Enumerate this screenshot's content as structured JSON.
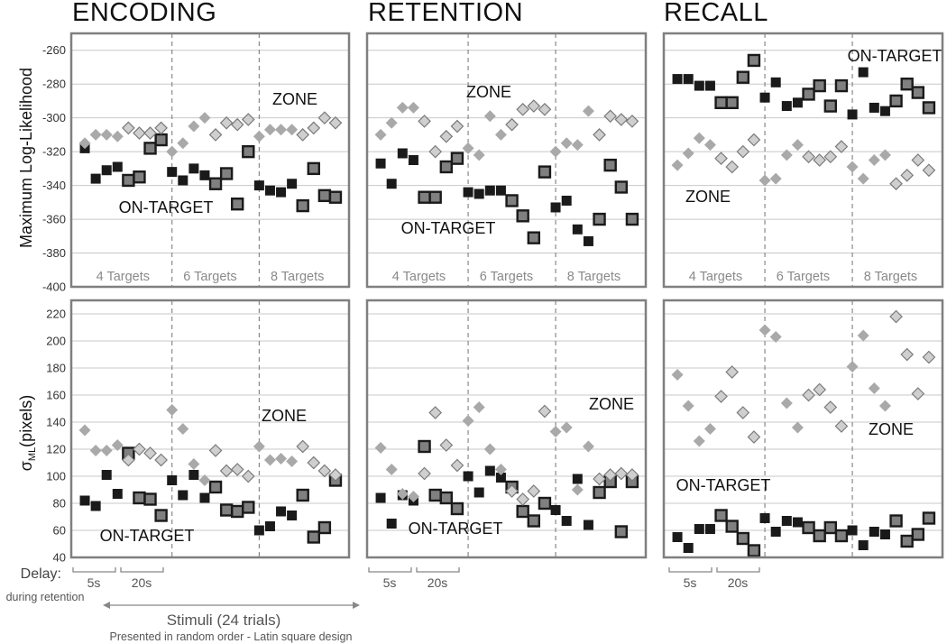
{
  "phases": [
    "ENCODING",
    "RETENTION",
    "RECALL"
  ],
  "colors": {
    "on_target": "#1a1a1a",
    "zone": "#a9a9a9",
    "frame": "#7f7f7f",
    "grid": "#c8c8c8",
    "divider": "#7f7f7f"
  },
  "footer": {
    "delay_title": "Delay:",
    "delay_sub": "during retention",
    "delay_5s": "5s",
    "delay_20s": "20s",
    "stimuli": "Stimuli (24 trials)",
    "stimuli_sub": "Presented in random order - Latin square design"
  },
  "chart_data": [
    {
      "type": "scatter",
      "title": "ENCODING",
      "ylabel": "Maximum Log-Likelihood",
      "ylim": [
        -400,
        -250
      ],
      "yticks": [
        -260,
        -280,
        -300,
        -320,
        -340,
        -360,
        -380,
        -400
      ],
      "grid": true,
      "group_labels": [
        "4 Targets",
        "6 Targets",
        "8 Targets"
      ],
      "annotations": [
        "ZONE",
        "ON-TARGET"
      ],
      "x": [
        1,
        2,
        3,
        4,
        5,
        6,
        7,
        8,
        9,
        10,
        11,
        12,
        13,
        14,
        15,
        16,
        17,
        18,
        19,
        20,
        21,
        22,
        23,
        24
      ],
      "series": [
        {
          "name": "ON-TARGET",
          "values": [
            -318,
            -336,
            -331,
            -329,
            -337,
            -335,
            -318,
            -313,
            -332,
            -337,
            -330,
            -334,
            -339,
            -333,
            -351,
            -320,
            -340,
            -343,
            -344,
            -339,
            -352,
            -330,
            -346,
            -347
          ],
          "boxed": [
            false,
            false,
            false,
            false,
            true,
            true,
            true,
            true,
            false,
            false,
            false,
            false,
            true,
            true,
            true,
            true,
            false,
            false,
            false,
            false,
            true,
            true,
            true,
            true
          ]
        },
        {
          "name": "ZONE",
          "values": [
            -315,
            -310,
            -310,
            -311,
            -306,
            -309,
            -309,
            -306,
            -320,
            -315,
            -305,
            -300,
            -310,
            -303,
            -304,
            -301,
            -311,
            -307,
            -307,
            -307,
            -310,
            -306,
            -300,
            -303
          ],
          "outlined": [
            false,
            false,
            false,
            false,
            true,
            true,
            true,
            true,
            false,
            false,
            false,
            false,
            true,
            true,
            true,
            true,
            false,
            false,
            false,
            false,
            true,
            true,
            true,
            true
          ]
        }
      ]
    },
    {
      "type": "scatter",
      "title": "RETENTION",
      "ylim": [
        -400,
        -250
      ],
      "grid": true,
      "group_labels": [
        "4 Targets",
        "6 Targets",
        "8 Targets"
      ],
      "annotations": [
        "ZONE",
        "ON-TARGET"
      ],
      "x": [
        1,
        2,
        3,
        4,
        5,
        6,
        7,
        8,
        9,
        10,
        11,
        12,
        13,
        14,
        15,
        16,
        17,
        18,
        19,
        20,
        21,
        22,
        23,
        24
      ],
      "series": [
        {
          "name": "ON-TARGET",
          "values": [
            -327,
            -339,
            -321,
            -325,
            -347,
            -347,
            -329,
            -324,
            -344,
            -345,
            -343,
            -343,
            -349,
            -358,
            -371,
            -332,
            -353,
            -349,
            -366,
            -373,
            -360,
            -328,
            -341,
            -360
          ],
          "boxed": [
            false,
            false,
            false,
            false,
            true,
            true,
            true,
            true,
            false,
            false,
            false,
            false,
            true,
            true,
            true,
            true,
            false,
            false,
            false,
            false,
            true,
            true,
            true,
            true
          ]
        },
        {
          "name": "ZONE",
          "values": [
            -310,
            -303,
            -294,
            -294,
            -302,
            -320,
            -311,
            -305,
            -318,
            -322,
            -299,
            -310,
            -304,
            -295,
            -293,
            -295,
            -320,
            -315,
            -316,
            -296,
            -310,
            -299,
            -301,
            -302
          ],
          "outlined": [
            false,
            false,
            false,
            false,
            true,
            true,
            true,
            true,
            false,
            false,
            false,
            false,
            true,
            true,
            true,
            true,
            false,
            false,
            false,
            false,
            true,
            true,
            true,
            true
          ]
        }
      ]
    },
    {
      "type": "scatter",
      "title": "RECALL",
      "ylim": [
        -400,
        -250
      ],
      "grid": true,
      "group_labels": [
        "4 Targets",
        "6 Targets",
        "8 Targets"
      ],
      "annotations": [
        "ON-TARGET",
        "ZONE"
      ],
      "x": [
        1,
        2,
        3,
        4,
        5,
        6,
        7,
        8,
        9,
        10,
        11,
        12,
        13,
        14,
        15,
        16,
        17,
        18,
        19,
        20,
        21,
        22,
        23,
        24
      ],
      "series": [
        {
          "name": "ON-TARGET",
          "values": [
            -277,
            -277,
            -281,
            -281,
            -291,
            -291,
            -276,
            -266,
            -288,
            -279,
            -293,
            -291,
            -286,
            -281,
            -293,
            -281,
            -298,
            -273,
            -294,
            -296,
            -290,
            -280,
            -285,
            -294
          ],
          "boxed": [
            false,
            false,
            false,
            false,
            true,
            true,
            true,
            true,
            false,
            false,
            false,
            false,
            true,
            true,
            true,
            true,
            false,
            false,
            false,
            false,
            true,
            true,
            true,
            true
          ]
        },
        {
          "name": "ZONE",
          "values": [
            -328,
            -321,
            -312,
            -316,
            -324,
            -329,
            -320,
            -313,
            -337,
            -336,
            -322,
            -316,
            -323,
            -325,
            -323,
            -317,
            -329,
            -336,
            -325,
            -322,
            -339,
            -334,
            -325,
            -331
          ],
          "outlined": [
            false,
            false,
            false,
            false,
            true,
            true,
            true,
            true,
            false,
            false,
            false,
            false,
            true,
            true,
            true,
            true,
            false,
            false,
            false,
            false,
            true,
            true,
            true,
            true
          ]
        }
      ]
    },
    {
      "type": "scatter",
      "ylabel": "σML(pixels)",
      "ylim": [
        40,
        230
      ],
      "yticks": [
        40,
        60,
        80,
        100,
        120,
        140,
        160,
        180,
        200,
        220
      ],
      "grid": true,
      "annotations": [
        "ZONE",
        "ON-TARGET"
      ],
      "x": [
        1,
        2,
        3,
        4,
        5,
        6,
        7,
        8,
        9,
        10,
        11,
        12,
        13,
        14,
        15,
        16,
        17,
        18,
        19,
        20,
        21,
        22,
        23,
        24
      ],
      "series": [
        {
          "name": "ON-TARGET",
          "values": [
            82,
            78,
            101,
            87,
            117,
            84,
            83,
            71,
            97,
            86,
            101,
            84,
            92,
            75,
            74,
            77,
            60,
            63,
            74,
            71,
            86,
            55,
            62,
            97
          ],
          "boxed": [
            false,
            false,
            false,
            false,
            true,
            true,
            true,
            true,
            false,
            false,
            false,
            false,
            true,
            true,
            true,
            true,
            false,
            false,
            false,
            false,
            true,
            true,
            true,
            true
          ]
        },
        {
          "name": "ZONE",
          "values": [
            134,
            119,
            119,
            123,
            112,
            120,
            117,
            112,
            149,
            135,
            109,
            97,
            119,
            104,
            105,
            100,
            122,
            112,
            113,
            111,
            122,
            110,
            104,
            101
          ],
          "outlined": [
            false,
            false,
            false,
            false,
            true,
            true,
            true,
            true,
            false,
            false,
            false,
            false,
            true,
            true,
            true,
            true,
            false,
            false,
            false,
            false,
            true,
            true,
            true,
            true
          ]
        }
      ]
    },
    {
      "type": "scatter",
      "ylim": [
        40,
        230
      ],
      "grid": true,
      "annotations": [
        "ZONE",
        "ON-TARGET"
      ],
      "x": [
        1,
        2,
        3,
        4,
        5,
        6,
        7,
        8,
        9,
        10,
        11,
        12,
        13,
        14,
        15,
        16,
        17,
        18,
        19,
        20,
        21,
        22,
        23,
        24
      ],
      "series": [
        {
          "name": "ON-TARGET",
          "values": [
            84,
            65,
            86,
            82,
            122,
            86,
            84,
            76,
            100,
            88,
            104,
            99,
            92,
            74,
            67,
            80,
            75,
            67,
            98,
            64,
            88,
            96,
            59,
            96
          ],
          "boxed": [
            false,
            false,
            false,
            false,
            true,
            true,
            true,
            true,
            false,
            false,
            false,
            false,
            true,
            true,
            true,
            true,
            false,
            false,
            false,
            false,
            true,
            true,
            true,
            true
          ]
        },
        {
          "name": "ZONE",
          "values": [
            121,
            105,
            87,
            85,
            102,
            147,
            123,
            108,
            141,
            151,
            120,
            105,
            89,
            83,
            89,
            148,
            133,
            136,
            90,
            122,
            98,
            101,
            102,
            101
          ],
          "outlined": [
            false,
            false,
            false,
            false,
            true,
            true,
            true,
            true,
            false,
            false,
            false,
            false,
            true,
            true,
            true,
            true,
            false,
            false,
            false,
            false,
            true,
            true,
            true,
            true
          ]
        }
      ]
    },
    {
      "type": "scatter",
      "ylim": [
        40,
        230
      ],
      "grid": true,
      "annotations": [
        "ON-TARGET",
        "ZONE"
      ],
      "x": [
        1,
        2,
        3,
        4,
        5,
        6,
        7,
        8,
        9,
        10,
        11,
        12,
        13,
        14,
        15,
        16,
        17,
        18,
        19,
        20,
        21,
        22,
        23,
        24
      ],
      "series": [
        {
          "name": "ON-TARGET",
          "values": [
            55,
            47,
            61,
            61,
            71,
            63,
            54,
            45,
            69,
            59,
            67,
            66,
            62,
            56,
            62,
            56,
            60,
            49,
            59,
            57,
            67,
            52,
            57,
            69
          ],
          "boxed": [
            false,
            false,
            false,
            false,
            true,
            true,
            true,
            true,
            false,
            false,
            false,
            false,
            true,
            true,
            true,
            true,
            false,
            false,
            false,
            false,
            true,
            true,
            true,
            true
          ]
        },
        {
          "name": "ZONE",
          "values": [
            175,
            152,
            126,
            135,
            159,
            177,
            147,
            129,
            208,
            203,
            154,
            136,
            160,
            164,
            151,
            137,
            181,
            204,
            165,
            152,
            218,
            190,
            161,
            188
          ],
          "outlined": [
            false,
            false,
            false,
            false,
            true,
            true,
            true,
            true,
            false,
            false,
            false,
            false,
            true,
            true,
            true,
            true,
            false,
            false,
            false,
            false,
            true,
            true,
            true,
            true
          ]
        }
      ]
    }
  ]
}
